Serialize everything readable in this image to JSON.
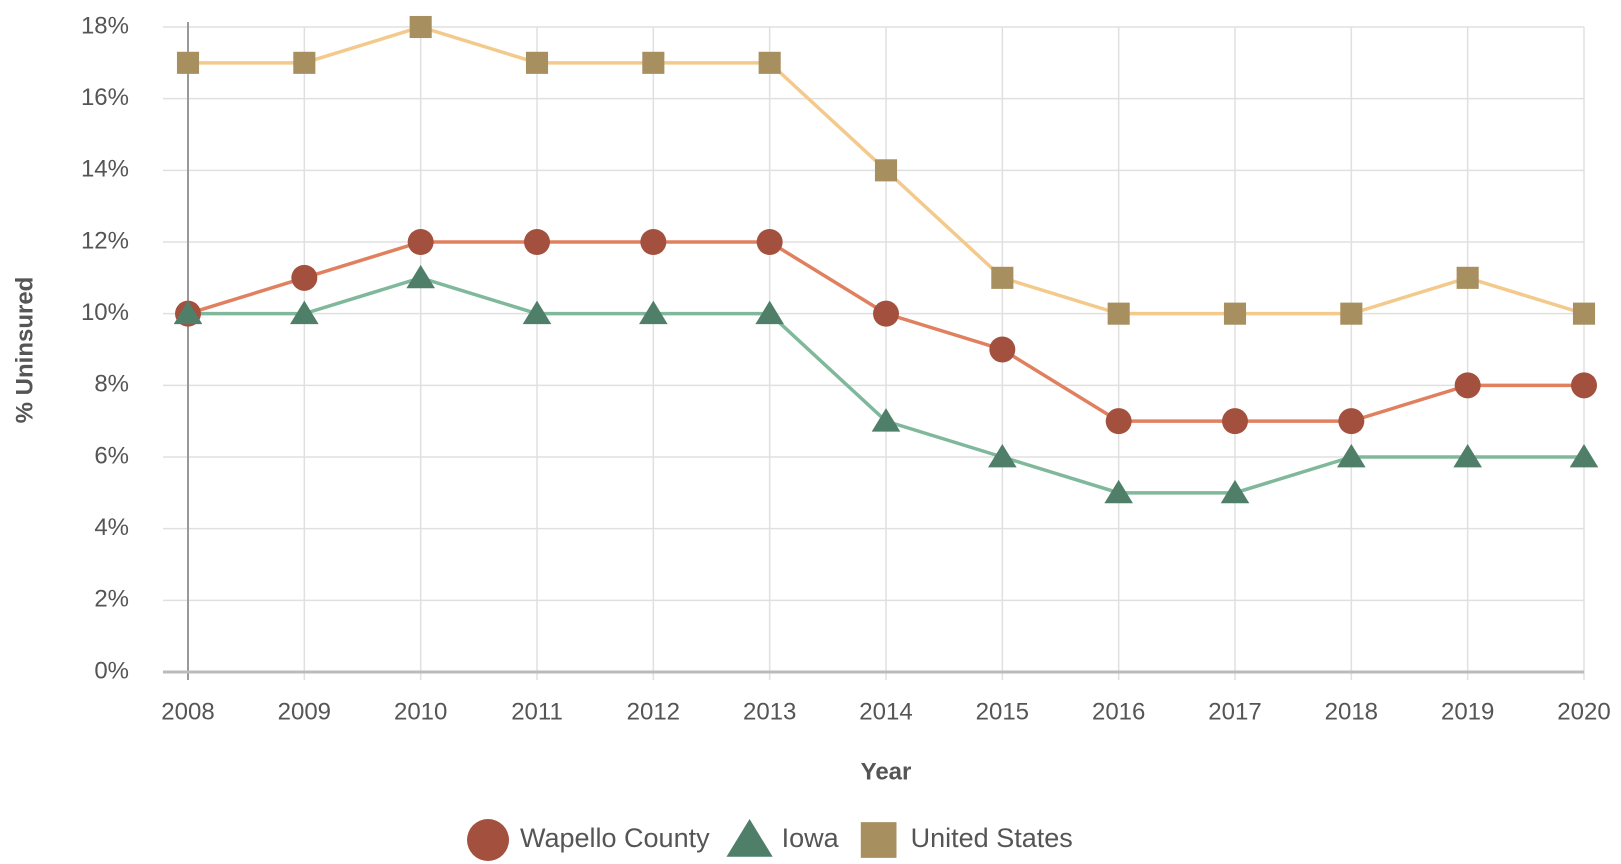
{
  "chart_data": {
    "type": "line",
    "x_label": "Year",
    "y_label": "% Uninsured",
    "x": [
      2008,
      2009,
      2010,
      2011,
      2012,
      2013,
      2014,
      2015,
      2016,
      2017,
      2018,
      2019,
      2020
    ],
    "xlim": [
      2008,
      2020
    ],
    "xticks": [
      2008,
      2009,
      2010,
      2011,
      2012,
      2013,
      2014,
      2015,
      2016,
      2017,
      2018,
      2019,
      2020
    ],
    "ylim": [
      0,
      18
    ],
    "yticks": [
      {
        "value": 0,
        "label": "0%"
      },
      {
        "value": 2,
        "label": "2%"
      },
      {
        "value": 4,
        "label": "4%"
      },
      {
        "value": 6,
        "label": "6%"
      },
      {
        "value": 8,
        "label": "8%"
      },
      {
        "value": 10,
        "label": "10%"
      },
      {
        "value": 12,
        "label": "12%"
      },
      {
        "value": 14,
        "label": "14%"
      },
      {
        "value": 16,
        "label": "16%"
      },
      {
        "value": 18,
        "label": "18%"
      }
    ],
    "grid": true,
    "legend": "bottom",
    "series": [
      {
        "name": "Wapello County",
        "color": "#e0805f",
        "marker_color": "#a3503e",
        "marker": "circle",
        "values": [
          10,
          11,
          12,
          12,
          12,
          12,
          10,
          9,
          7,
          7,
          7,
          8,
          8
        ]
      },
      {
        "name": "Iowa",
        "color": "#80b89c",
        "marker_color": "#4f7f68",
        "marker": "triangle",
        "values": [
          10,
          10,
          11,
          10,
          10,
          10,
          7,
          6,
          5,
          5,
          6,
          6,
          6
        ]
      },
      {
        "name": "United States",
        "color": "#f3ca8c",
        "marker_color": "#a88f5f",
        "marker": "square",
        "values": [
          17,
          17,
          18,
          17,
          17,
          17,
          14,
          11,
          10,
          10,
          10,
          11,
          10
        ]
      }
    ]
  }
}
